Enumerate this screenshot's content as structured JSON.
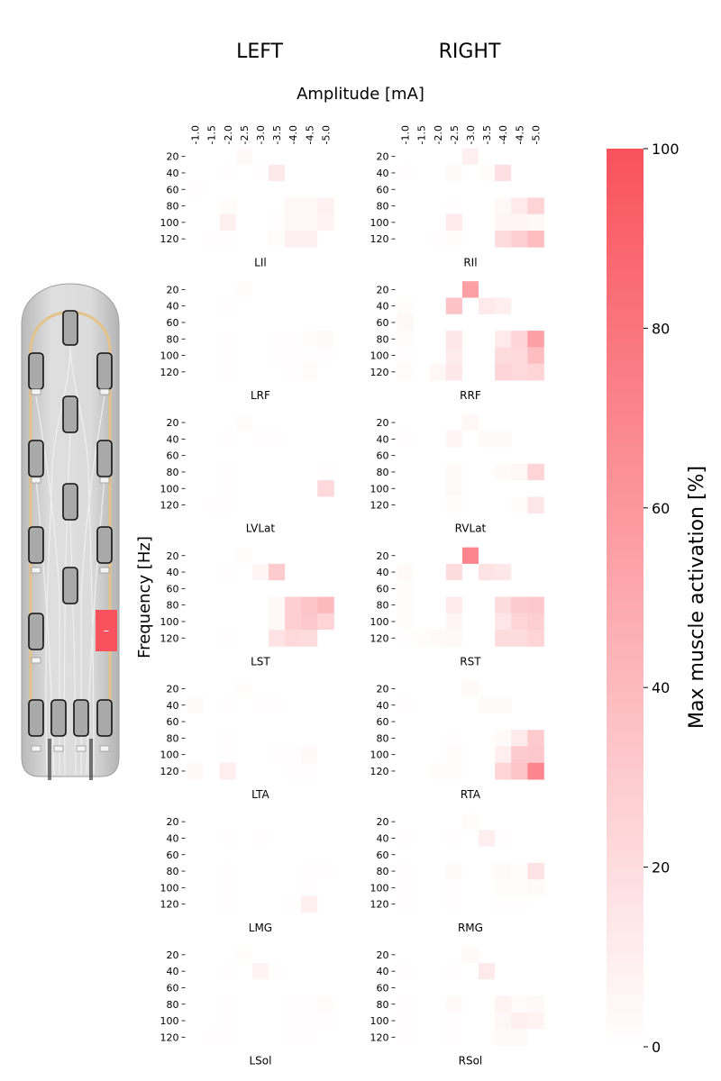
{
  "chart_data": {
    "type": "heatmap",
    "column_titles": [
      "LEFT",
      "RIGHT"
    ],
    "xlabel": "Amplitude [mA]",
    "ylabel": "Frequency [Hz]",
    "x_ticks": [
      "-1.0",
      "-1.5",
      "-2.0",
      "-2.5",
      "-3.0",
      "-3.5",
      "-4.0",
      "-4.5",
      "-5.0"
    ],
    "y_ticks": [
      "20",
      "40",
      "60",
      "80",
      "100",
      "120"
    ],
    "colorbar": {
      "label": "Max muscle activation [%]",
      "ticks": [
        "0",
        "20",
        "40",
        "60",
        "80",
        "100"
      ],
      "range": [
        0,
        100
      ],
      "color_low": "#ffffff",
      "color_high": "#f9525c"
    },
    "electrode_array": {
      "active_contact_color": "#f9525c",
      "active_contact_label": "–"
    },
    "panels": [
      {
        "label": "LIl",
        "side": "left",
        "values": [
          [
            0,
            0,
            0,
            4,
            0,
            0,
            0,
            0,
            0
          ],
          [
            0,
            0,
            1,
            0,
            1,
            13,
            0,
            0,
            0
          ],
          [
            1,
            0,
            0,
            0,
            0,
            0,
            0,
            0,
            0
          ],
          [
            0,
            0,
            2,
            0,
            0,
            0,
            5,
            5,
            8
          ],
          [
            0,
            0,
            9,
            0,
            0,
            1,
            4,
            4,
            7
          ],
          [
            0,
            1,
            1,
            0,
            0,
            2,
            9,
            9,
            0
          ]
        ]
      },
      {
        "label": "RIl",
        "side": "right",
        "values": [
          [
            0,
            0,
            0,
            0,
            9,
            0,
            0,
            0,
            0
          ],
          [
            1,
            0,
            0,
            3,
            0,
            2,
            18,
            0,
            0
          ],
          [
            0,
            0,
            0,
            0,
            0,
            0,
            0,
            0,
            0
          ],
          [
            0,
            0,
            0,
            1,
            0,
            0,
            4,
            12,
            25
          ],
          [
            0,
            0,
            0,
            12,
            0,
            0,
            6,
            6,
            4
          ],
          [
            0,
            0,
            1,
            2,
            0,
            0,
            20,
            28,
            38
          ]
        ]
      },
      {
        "label": "LRF",
        "side": "left",
        "values": [
          [
            0,
            0,
            0,
            2,
            0,
            0,
            0,
            0,
            0
          ],
          [
            0,
            0,
            1,
            0,
            0,
            0,
            0,
            0,
            0
          ],
          [
            0,
            0,
            0,
            0,
            0,
            0,
            0,
            0,
            0
          ],
          [
            0,
            0,
            1,
            0,
            0,
            1,
            1,
            2,
            3
          ],
          [
            0,
            0,
            1,
            0,
            0,
            1,
            1,
            1,
            1
          ],
          [
            0,
            0,
            1,
            0,
            0,
            0,
            1,
            2,
            0
          ]
        ]
      },
      {
        "label": "RRF",
        "side": "right",
        "values": [
          [
            0,
            0,
            0,
            0,
            55,
            0,
            0,
            0,
            0
          ],
          [
            2,
            0,
            0,
            35,
            0,
            12,
            10,
            0,
            0
          ],
          [
            4,
            0,
            0,
            0,
            0,
            0,
            0,
            0,
            0
          ],
          [
            2,
            0,
            0,
            15,
            0,
            0,
            12,
            24,
            55
          ],
          [
            1,
            0,
            0,
            12,
            0,
            0,
            20,
            22,
            38
          ],
          [
            2,
            0,
            5,
            14,
            0,
            0,
            24,
            22,
            25
          ]
        ]
      },
      {
        "label": "LVLat",
        "side": "left",
        "values": [
          [
            0,
            0,
            0,
            2,
            0,
            0,
            0,
            0,
            0
          ],
          [
            0,
            0,
            1,
            0,
            1,
            1,
            0,
            0,
            0
          ],
          [
            0,
            0,
            0,
            0,
            0,
            0,
            0,
            0,
            0
          ],
          [
            0,
            0,
            1,
            0,
            0,
            0,
            0,
            0,
            1
          ],
          [
            0,
            0,
            1,
            0,
            0,
            0,
            0,
            0,
            22
          ],
          [
            0,
            1,
            1,
            0,
            0,
            0,
            0,
            0,
            0
          ]
        ]
      },
      {
        "label": "RVLat",
        "side": "right",
        "values": [
          [
            0,
            0,
            0,
            0,
            5,
            0,
            0,
            0,
            0
          ],
          [
            1,
            0,
            0,
            6,
            0,
            3,
            3,
            0,
            0
          ],
          [
            0,
            0,
            0,
            0,
            0,
            0,
            0,
            0,
            0
          ],
          [
            0,
            0,
            0,
            3,
            0,
            0,
            3,
            5,
            25
          ],
          [
            0,
            0,
            0,
            3,
            0,
            0,
            0,
            0,
            0
          ],
          [
            0,
            0,
            0,
            2,
            0,
            0,
            0,
            2,
            15
          ]
        ]
      },
      {
        "label": "LST",
        "side": "left",
        "values": [
          [
            0,
            0,
            0,
            2,
            0,
            0,
            0,
            0,
            0
          ],
          [
            0,
            0,
            1,
            0,
            6,
            30,
            0,
            0,
            0
          ],
          [
            0,
            0,
            0,
            0,
            0,
            0,
            0,
            0,
            0
          ],
          [
            0,
            0,
            0,
            0,
            0,
            4,
            28,
            34,
            40
          ],
          [
            0,
            0,
            0,
            0,
            0,
            4,
            28,
            32,
            25
          ],
          [
            0,
            0,
            1,
            0,
            0,
            16,
            22,
            20,
            0
          ]
        ]
      },
      {
        "label": "RST",
        "side": "right",
        "values": [
          [
            0,
            0,
            0,
            0,
            70,
            0,
            0,
            0,
            0
          ],
          [
            3,
            0,
            0,
            20,
            0,
            16,
            14,
            0,
            0
          ],
          [
            2,
            0,
            0,
            0,
            0,
            0,
            0,
            0,
            0
          ],
          [
            2,
            0,
            0,
            12,
            0,
            0,
            20,
            30,
            32
          ],
          [
            2,
            0,
            0,
            6,
            0,
            0,
            15,
            25,
            28
          ],
          [
            1,
            2,
            3,
            4,
            0,
            0,
            20,
            20,
            25
          ]
        ]
      },
      {
        "label": "LTA",
        "side": "left",
        "values": [
          [
            0,
            0,
            0,
            2,
            0,
            0,
            0,
            0,
            0
          ],
          [
            3,
            0,
            1,
            0,
            1,
            1,
            0,
            0,
            0
          ],
          [
            0,
            0,
            0,
            0,
            0,
            0,
            0,
            0,
            0
          ],
          [
            0,
            0,
            1,
            0,
            0,
            0,
            0,
            0,
            0
          ],
          [
            0,
            0,
            1,
            0,
            0,
            1,
            1,
            4,
            0
          ],
          [
            4,
            0,
            10,
            0,
            0,
            0,
            1,
            1,
            0
          ]
        ]
      },
      {
        "label": "RTA",
        "side": "right",
        "values": [
          [
            0,
            0,
            0,
            0,
            3,
            0,
            0,
            0,
            0
          ],
          [
            1,
            0,
            0,
            0,
            0,
            3,
            3,
            0,
            0
          ],
          [
            0,
            0,
            0,
            0,
            0,
            0,
            0,
            0,
            0
          ],
          [
            0,
            0,
            0,
            1,
            0,
            0,
            3,
            12,
            30
          ],
          [
            0,
            0,
            0,
            2,
            0,
            0,
            10,
            30,
            32
          ],
          [
            0,
            0,
            2,
            2,
            0,
            0,
            25,
            34,
            70
          ]
        ]
      },
      {
        "label": "LMG",
        "side": "left",
        "values": [
          [
            0,
            0,
            0,
            0,
            0,
            0,
            0,
            0,
            0
          ],
          [
            0,
            0,
            1,
            0,
            1,
            0,
            0,
            0,
            0
          ],
          [
            0,
            0,
            0,
            0,
            0,
            0,
            0,
            0,
            0
          ],
          [
            0,
            0,
            1,
            0,
            0,
            0,
            0,
            1,
            1
          ],
          [
            0,
            0,
            1,
            0,
            0,
            0,
            0,
            1,
            0
          ],
          [
            0,
            0,
            1,
            0,
            0,
            0,
            1,
            9,
            0
          ]
        ]
      },
      {
        "label": "RMG",
        "side": "right",
        "values": [
          [
            0,
            0,
            0,
            0,
            2,
            0,
            0,
            0,
            0
          ],
          [
            1,
            0,
            0,
            1,
            0,
            10,
            1,
            0,
            0
          ],
          [
            0,
            0,
            0,
            0,
            0,
            0,
            0,
            0,
            0
          ],
          [
            1,
            0,
            0,
            3,
            0,
            0,
            3,
            2,
            16
          ],
          [
            1,
            0,
            0,
            1,
            0,
            0,
            2,
            2,
            3
          ],
          [
            1,
            0,
            0,
            1,
            0,
            0,
            1,
            1,
            0
          ]
        ]
      },
      {
        "label": "LSol",
        "side": "left",
        "values": [
          [
            0,
            0,
            0,
            2,
            0,
            0,
            0,
            0,
            0
          ],
          [
            0,
            0,
            1,
            0,
            7,
            1,
            0,
            0,
            0
          ],
          [
            0,
            0,
            0,
            0,
            0,
            0,
            0,
            0,
            0
          ],
          [
            0,
            0,
            1,
            0,
            0,
            0,
            1,
            1,
            2
          ],
          [
            0,
            0,
            1,
            0,
            0,
            0,
            1,
            1,
            1
          ],
          [
            0,
            1,
            1,
            0,
            0,
            0,
            1,
            1,
            0
          ]
        ]
      },
      {
        "label": "RSol",
        "side": "right",
        "values": [
          [
            0,
            0,
            0,
            0,
            3,
            0,
            0,
            0,
            0
          ],
          [
            1,
            0,
            0,
            1,
            0,
            12,
            0,
            0,
            0
          ],
          [
            0,
            0,
            0,
            0,
            0,
            0,
            0,
            0,
            0
          ],
          [
            1,
            0,
            0,
            3,
            0,
            0,
            7,
            2,
            4
          ],
          [
            1,
            0,
            0,
            1,
            0,
            0,
            5,
            9,
            7
          ],
          [
            1,
            0,
            0,
            1,
            0,
            0,
            3,
            3,
            0
          ]
        ]
      }
    ]
  }
}
